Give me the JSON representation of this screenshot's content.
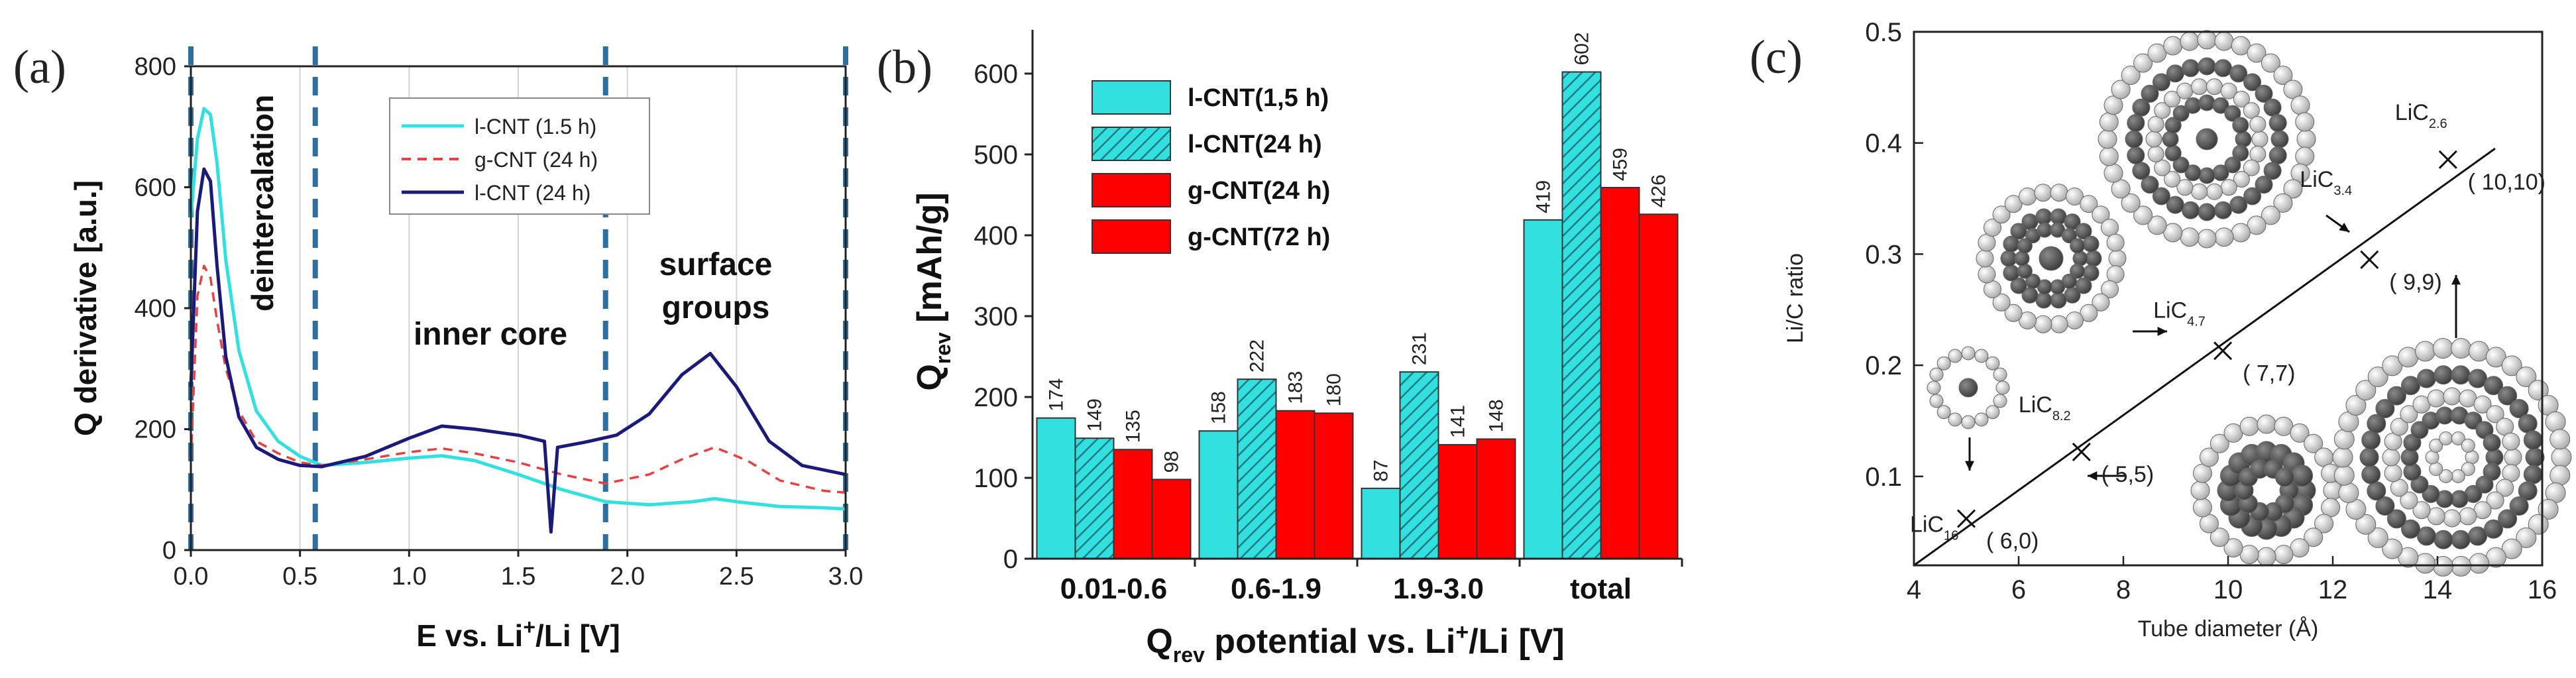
{
  "colors": {
    "cyan": "#33e0e0",
    "red_dash": "#e84040",
    "navy": "#1a1a7a",
    "bar_red": "#ff0000",
    "marker_blue": "#3a78b0",
    "dark_sphere": "#4a4a4a",
    "light_sphere": "#d8d8d8"
  },
  "chart_data": [
    {
      "type": "line",
      "panel_label": "(a)",
      "xlabel": "E vs. Li",
      "xlabel_sup": "+",
      "xlabel_tail": "/Li [V]",
      "ylabel": "Q derivative [a.u.]",
      "xlim": [
        0,
        3.0
      ],
      "ylim": [
        0,
        800
      ],
      "xticks": [
        "0.0",
        "0.5",
        "1.0",
        "1.5",
        "2.0",
        "2.5",
        "3.0"
      ],
      "yticks": [
        "0",
        "200",
        "400",
        "600",
        "800"
      ],
      "region_markers": [
        0.0,
        0.57,
        1.9,
        3.0
      ],
      "annotations": [
        "deintercalation",
        "inner core",
        "surface",
        "groups"
      ],
      "legend": [
        "l-CNT (1.5 h)",
        "g-CNT (24 h)",
        "l-CNT (24 h)"
      ],
      "series": [
        {
          "name": "l-CNT (1.5 h)",
          "x": [
            0.0,
            0.03,
            0.06,
            0.09,
            0.12,
            0.16,
            0.22,
            0.3,
            0.4,
            0.5,
            0.6,
            0.8,
            1.0,
            1.15,
            1.3,
            1.5,
            1.7,
            1.9,
            2.1,
            2.3,
            2.4,
            2.5,
            2.7,
            2.9,
            3.0
          ],
          "y": [
            550,
            680,
            730,
            720,
            640,
            480,
            330,
            230,
            180,
            155,
            140,
            145,
            152,
            156,
            148,
            125,
            100,
            80,
            75,
            80,
            85,
            80,
            72,
            70,
            68
          ]
        },
        {
          "name": "g-CNT (24 h)",
          "x": [
            0.0,
            0.03,
            0.06,
            0.09,
            0.12,
            0.16,
            0.22,
            0.3,
            0.4,
            0.5,
            0.6,
            0.8,
            1.0,
            1.15,
            1.3,
            1.5,
            1.7,
            1.9,
            2.1,
            2.25,
            2.4,
            2.55,
            2.7,
            2.9,
            3.0
          ],
          "y": [
            150,
            420,
            470,
            450,
            380,
            300,
            230,
            180,
            160,
            145,
            140,
            150,
            162,
            168,
            160,
            145,
            125,
            110,
            125,
            150,
            170,
            148,
            115,
            98,
            95
          ]
        },
        {
          "name": "l-CNT (24 h)",
          "x": [
            0.0,
            0.03,
            0.06,
            0.09,
            0.12,
            0.16,
            0.22,
            0.3,
            0.4,
            0.5,
            0.6,
            0.8,
            1.0,
            1.15,
            1.3,
            1.5,
            1.62,
            1.65,
            1.68,
            1.8,
            1.95,
            2.1,
            2.25,
            2.38,
            2.5,
            2.65,
            2.8,
            3.0
          ],
          "y": [
            270,
            560,
            630,
            610,
            470,
            320,
            220,
            170,
            150,
            140,
            138,
            155,
            185,
            205,
            200,
            190,
            180,
            30,
            170,
            178,
            190,
            225,
            290,
            325,
            270,
            180,
            140,
            125
          ]
        }
      ]
    },
    {
      "type": "bar",
      "panel_label": "(b)",
      "ylabel": "Q",
      "ylabel_sub": "rev",
      "ylabel_tail": " [mAh/g]",
      "xlabel": "Q",
      "xlabel_sub": "rev",
      "xlabel_tail": " potential vs. Li",
      "xlabel_sup": "+",
      "xlabel_end": "/Li [V]",
      "ylim": [
        0,
        650
      ],
      "yticks": [
        "0",
        "100",
        "200",
        "300",
        "400",
        "500",
        "600"
      ],
      "categories": [
        "0.01-0.6",
        "0.6-1.9",
        "1.9-3.0",
        "total"
      ],
      "legend": [
        "l-CNT(1,5 h)",
        "l-CNT(24 h)",
        "g-CNT(24 h)",
        "g-CNT(72 h)"
      ],
      "series": [
        {
          "name": "l-CNT(1,5 h)",
          "values": [
            174,
            158,
            87,
            419
          ]
        },
        {
          "name": "l-CNT(24 h)",
          "values": [
            149,
            222,
            231,
            602
          ]
        },
        {
          "name": "g-CNT(24 h)",
          "values": [
            135,
            183,
            141,
            459
          ]
        },
        {
          "name": "g-CNT(72 h)",
          "values": [
            98,
            180,
            148,
            426
          ]
        }
      ],
      "value_labels": [
        [
          "174",
          "158",
          "87",
          "419"
        ],
        [
          "149",
          "222",
          "231",
          "602"
        ],
        [
          "135",
          "183",
          "141",
          "459"
        ],
        [
          "98",
          "180",
          "148",
          "426"
        ]
      ]
    },
    {
      "type": "scatter",
      "panel_label": "(c)",
      "xlabel": "Tube diameter  (Å)",
      "ylabel": "Li/C ratio",
      "xlim": [
        4,
        16
      ],
      "ylim": [
        0.02,
        0.5
      ],
      "xticks": [
        "4",
        "6",
        "8",
        "10",
        "12",
        "14",
        "16"
      ],
      "yticks": [
        "0.1",
        "0.2",
        "0.3",
        "0.4",
        "0.5"
      ],
      "fit_line": {
        "x": [
          4.0,
          15.1
        ],
        "y": [
          0.02,
          0.395
        ]
      },
      "points": [
        {
          "x": 5.0,
          "y": 0.062,
          "label": "( 6,0)",
          "formula": "LiC",
          "sub": "16"
        },
        {
          "x": 7.2,
          "y": 0.122,
          "label": "( 5,5)",
          "formula": "LiC",
          "sub": "8.2"
        },
        {
          "x": 9.9,
          "y": 0.213,
          "label": "( 7,7)",
          "formula": "LiC",
          "sub": "4.7"
        },
        {
          "x": 12.7,
          "y": 0.295,
          "label": "( 9,9)",
          "formula": "LiC",
          "sub": "3.4"
        },
        {
          "x": 14.2,
          "y": 0.385,
          "label": "( 10,10)",
          "formula": "LiC",
          "sub": "2.6"
        }
      ]
    }
  ]
}
